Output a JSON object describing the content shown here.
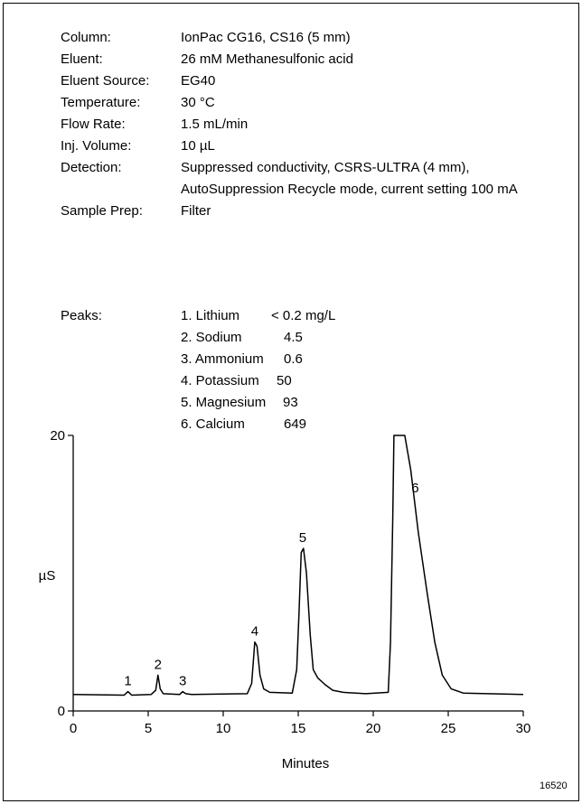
{
  "conditions": [
    {
      "label": "Column:",
      "value": "IonPac CG16, CS16 (5 mm)"
    },
    {
      "label": "Eluent:",
      "value": "26 mM Methanesulfonic acid"
    },
    {
      "label": "Eluent Source:",
      "value": "EG40"
    },
    {
      "label": "Temperature:",
      "value": "30 °C"
    },
    {
      "label": "Flow Rate:",
      "value": "1.5 mL/min"
    },
    {
      "label": "Inj. Volume:",
      "value": "10 µL"
    },
    {
      "label": "Detection:",
      "value": "Suppressed conductivity, CSRS-ULTRA (4 mm),"
    },
    {
      "label": "",
      "value": "AutoSuppression Recycle mode, current setting 100 mA"
    },
    {
      "label": "Sample Prep:",
      "value": "Filter"
    }
  ],
  "peaks": {
    "label": "Peaks:",
    "items": [
      {
        "name": "1. Lithium",
        "amount": "< 0.2 mg/L"
      },
      {
        "name": "2. Sodium",
        "amount": "4.5"
      },
      {
        "name": "3. Ammonium",
        "amount": "0.6"
      },
      {
        "name": "4. Potassium",
        "amount": "50"
      },
      {
        "name": "5. Magnesium",
        "amount": "93"
      },
      {
        "name": "6. Calcium",
        "amount": "649"
      }
    ]
  },
  "figure_id": "16520",
  "chart_data": {
    "type": "line",
    "xlabel": "Minutes",
    "ylabel": "µS",
    "xlim": [
      0,
      30
    ],
    "ylim": [
      0,
      20
    ],
    "x_ticks": [
      0,
      5,
      10,
      15,
      20,
      25,
      30
    ],
    "y_ticks": [
      0,
      20
    ],
    "grid": false,
    "baseline": 1.2,
    "series": [
      {
        "values": [
          [
            0,
            1.2
          ],
          [
            3.4,
            1.15
          ],
          [
            3.65,
            1.4
          ],
          [
            3.9,
            1.15
          ],
          [
            5.2,
            1.2
          ],
          [
            5.5,
            1.5
          ],
          [
            5.65,
            2.6
          ],
          [
            5.8,
            1.6
          ],
          [
            6.0,
            1.25
          ],
          [
            7.1,
            1.2
          ],
          [
            7.3,
            1.4
          ],
          [
            7.5,
            1.25
          ],
          [
            7.9,
            1.2
          ],
          [
            11.6,
            1.25
          ],
          [
            11.9,
            2.0
          ],
          [
            12.1,
            5.0
          ],
          [
            12.25,
            4.7
          ],
          [
            12.45,
            2.6
          ],
          [
            12.7,
            1.6
          ],
          [
            13.1,
            1.35
          ],
          [
            14.6,
            1.3
          ],
          [
            14.9,
            3.0
          ],
          [
            15.05,
            7.0
          ],
          [
            15.2,
            11.5
          ],
          [
            15.35,
            11.8
          ],
          [
            15.55,
            10.0
          ],
          [
            15.8,
            5.5
          ],
          [
            16.0,
            3.0
          ],
          [
            16.3,
            2.4
          ],
          [
            16.8,
            1.9
          ],
          [
            17.3,
            1.5
          ],
          [
            18.0,
            1.35
          ],
          [
            19.5,
            1.25
          ],
          [
            21.0,
            1.35
          ],
          [
            21.15,
            5.0
          ],
          [
            21.3,
            14.0
          ],
          [
            21.38,
            20.5
          ],
          [
            22.1,
            20.5
          ],
          [
            22.5,
            17.5
          ],
          [
            23.0,
            13.0
          ],
          [
            23.6,
            8.5
          ],
          [
            24.1,
            5.0
          ],
          [
            24.6,
            2.6
          ],
          [
            25.2,
            1.6
          ],
          [
            26.0,
            1.3
          ],
          [
            30,
            1.2
          ]
        ]
      }
    ],
    "peak_labels": [
      {
        "text": "1",
        "x": 3.65,
        "y": 1.6
      },
      {
        "text": "2",
        "x": 5.65,
        "y": 2.8
      },
      {
        "text": "3",
        "x": 7.3,
        "y": 1.6
      },
      {
        "text": "4",
        "x": 12.1,
        "y": 5.2
      },
      {
        "text": "5",
        "x": 15.3,
        "y": 12.0
      },
      {
        "text": "6",
        "x": 22.8,
        "y": 15.6
      }
    ]
  }
}
